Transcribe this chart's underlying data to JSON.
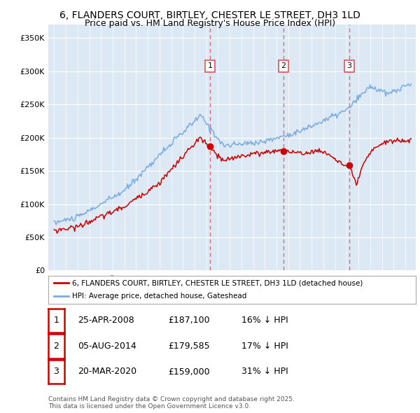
{
  "title1": "6, FLANDERS COURT, BIRTLEY, CHESTER LE STREET, DH3 1LD",
  "title2": "Price paid vs. HM Land Registry's House Price Index (HPI)",
  "ylim": [
    0,
    370000
  ],
  "yticks": [
    0,
    50000,
    100000,
    150000,
    200000,
    250000,
    300000,
    350000
  ],
  "ytick_labels": [
    "£0",
    "£50K",
    "£100K",
    "£150K",
    "£200K",
    "£250K",
    "£300K",
    "£350K"
  ],
  "plot_bg_color": "#dce9f5",
  "grid_color": "#ffffff",
  "red_color": "#cc0000",
  "blue_color": "#7aabe0",
  "dashed_color": "#dd5555",
  "sale_dates": [
    2008.32,
    2014.59,
    2020.22
  ],
  "sale_prices": [
    187100,
    179585,
    159000
  ],
  "sale_labels": [
    "1",
    "2",
    "3"
  ],
  "legend_label1": "6, FLANDERS COURT, BIRTLEY, CHESTER LE STREET, DH3 1LD (detached house)",
  "legend_label2": "HPI: Average price, detached house, Gateshead",
  "table_entries": [
    {
      "label": "1",
      "date": "25-APR-2008",
      "price": "£187,100",
      "hpi": "16% ↓ HPI"
    },
    {
      "label": "2",
      "date": "05-AUG-2014",
      "price": "£179,585",
      "hpi": "17% ↓ HPI"
    },
    {
      "label": "3",
      "date": "20-MAR-2020",
      "price": "£159,000",
      "hpi": "31% ↓ HPI"
    }
  ],
  "footnote": "Contains HM Land Registry data © Crown copyright and database right 2025.\nThis data is licensed under the Open Government Licence v3.0."
}
